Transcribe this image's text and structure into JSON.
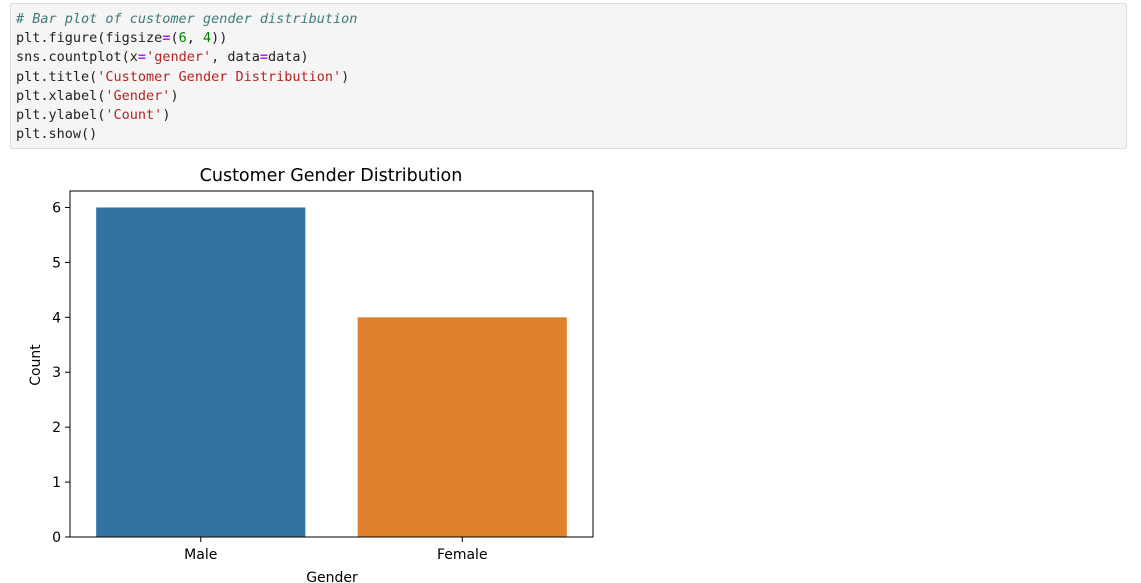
{
  "code_cell": {
    "lines": [
      [
        {
          "t": "# Bar plot of customer gender distribution",
          "k": "comment"
        }
      ],
      [
        {
          "t": "plt.figure(figsize",
          "k": "plain"
        },
        {
          "t": "=",
          "k": "op"
        },
        {
          "t": "(",
          "k": "plain"
        },
        {
          "t": "6",
          "k": "num"
        },
        {
          "t": ", ",
          "k": "plain"
        },
        {
          "t": "4",
          "k": "num"
        },
        {
          "t": "))",
          "k": "plain"
        }
      ],
      [
        {
          "t": "sns.countplot(x",
          "k": "plain"
        },
        {
          "t": "=",
          "k": "op"
        },
        {
          "t": "'gender'",
          "k": "str"
        },
        {
          "t": ", data",
          "k": "plain"
        },
        {
          "t": "=",
          "k": "op"
        },
        {
          "t": "data)",
          "k": "plain"
        }
      ],
      [
        {
          "t": "plt.title(",
          "k": "plain"
        },
        {
          "t": "'Customer Gender Distribution'",
          "k": "str"
        },
        {
          "t": ")",
          "k": "plain"
        }
      ],
      [
        {
          "t": "plt.xlabel(",
          "k": "plain"
        },
        {
          "t": "'Gender'",
          "k": "str"
        },
        {
          "t": ")",
          "k": "plain"
        }
      ],
      [
        {
          "t": "plt.ylabel(",
          "k": "plain"
        },
        {
          "t": "'Count'",
          "k": "str"
        },
        {
          "t": ")",
          "k": "plain"
        }
      ],
      [
        {
          "t": "plt.show()",
          "k": "plain"
        }
      ]
    ]
  },
  "chart_data": {
    "type": "bar",
    "title": "Customer Gender Distribution",
    "xlabel": "Gender",
    "ylabel": "Count",
    "categories": [
      "Male",
      "Female"
    ],
    "values": [
      6,
      4
    ],
    "colors": [
      "#3274a1",
      "#e1812c"
    ],
    "ylim": [
      0,
      6.3
    ],
    "yticks": [
      0,
      1,
      2,
      3,
      4,
      5,
      6
    ],
    "grid": false
  }
}
